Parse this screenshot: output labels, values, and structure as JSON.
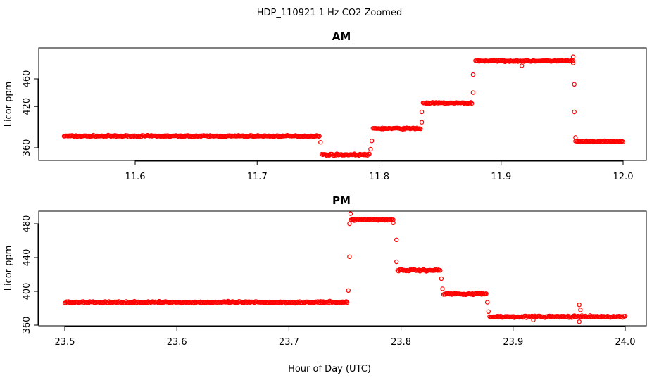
{
  "figure": {
    "title": "HDP_110921  1 Hz CO2 Zoomed",
    "xlabel": "Hour of Day (UTC)"
  },
  "colors": {
    "points": "#ff0000",
    "axes": "#000000"
  },
  "chart_data": [
    {
      "type": "scatter",
      "title": "AM",
      "xlabel": "Hour of Day (UTC)",
      "ylabel": "Licor ppm",
      "xlim": [
        11.54,
        12.0
      ],
      "ylim": [
        346,
        497
      ],
      "xticks": [
        11.6,
        11.7,
        11.8,
        11.9,
        12.0
      ],
      "xtick_labels": [
        "11.6",
        "11.7",
        "11.8",
        "11.9",
        "12.0"
      ],
      "yticks": [
        360,
        420,
        460
      ],
      "ytick_labels": [
        "360",
        "420",
        "460"
      ],
      "grid": false,
      "marker": "open-circle",
      "segments": [
        {
          "x_start": 11.5417,
          "x_end": 11.751,
          "y": 377
        },
        {
          "x_start": 11.753,
          "x_end": 11.792,
          "y": 350
        },
        {
          "x_start": 11.795,
          "x_end": 11.834,
          "y": 388
        },
        {
          "x_start": 11.836,
          "x_end": 11.876,
          "y": 425
        },
        {
          "x_start": 11.879,
          "x_end": 11.959,
          "y": 486
        },
        {
          "x_start": 11.961,
          "x_end": 12.0,
          "y": 369
        }
      ],
      "transition_points": [
        [
          11.752,
          368
        ],
        [
          11.793,
          358
        ],
        [
          11.794,
          370
        ],
        [
          11.835,
          397
        ],
        [
          11.835,
          412
        ],
        [
          11.877,
          440
        ],
        [
          11.877,
          466
        ],
        [
          11.917,
          479
        ],
        [
          11.959,
          492
        ],
        [
          11.959,
          483
        ],
        [
          11.96,
          452
        ],
        [
          11.96,
          412
        ],
        [
          11.961,
          375
        ]
      ]
    },
    {
      "type": "scatter",
      "title": "PM",
      "xlabel": "Hour of Day (UTC)",
      "ylabel": "Licor ppm",
      "xlim": [
        23.48,
        24.02
      ],
      "ylim": [
        360,
        496
      ],
      "xticks": [
        23.5,
        23.6,
        23.7,
        23.8,
        23.9,
        24.0
      ],
      "xtick_labels": [
        "23.5",
        "23.6",
        "23.7",
        "23.8",
        "23.9",
        "24.0"
      ],
      "yticks": [
        360,
        400,
        440,
        480
      ],
      "ytick_labels": [
        "360",
        "400",
        "440",
        "480"
      ],
      "grid": false,
      "marker": "open-circle",
      "segments": [
        {
          "x_start": 23.5,
          "x_end": 23.752,
          "y": 387
        },
        {
          "x_start": 23.755,
          "x_end": 23.793,
          "y": 485
        },
        {
          "x_start": 23.797,
          "x_end": 23.835,
          "y": 425
        },
        {
          "x_start": 23.838,
          "x_end": 23.876,
          "y": 397
        },
        {
          "x_start": 23.879,
          "x_end": 24.0,
          "y": 370
        }
      ],
      "transition_points": [
        [
          23.753,
          401
        ],
        [
          23.754,
          441
        ],
        [
          23.754,
          480
        ],
        [
          23.755,
          492
        ],
        [
          23.793,
          481
        ],
        [
          23.796,
          461
        ],
        [
          23.796,
          435
        ],
        [
          23.836,
          415
        ],
        [
          23.837,
          403
        ],
        [
          23.877,
          387
        ],
        [
          23.878,
          376
        ],
        [
          23.918,
          366
        ],
        [
          23.959,
          384
        ],
        [
          23.959,
          364
        ],
        [
          23.96,
          378
        ]
      ]
    }
  ]
}
